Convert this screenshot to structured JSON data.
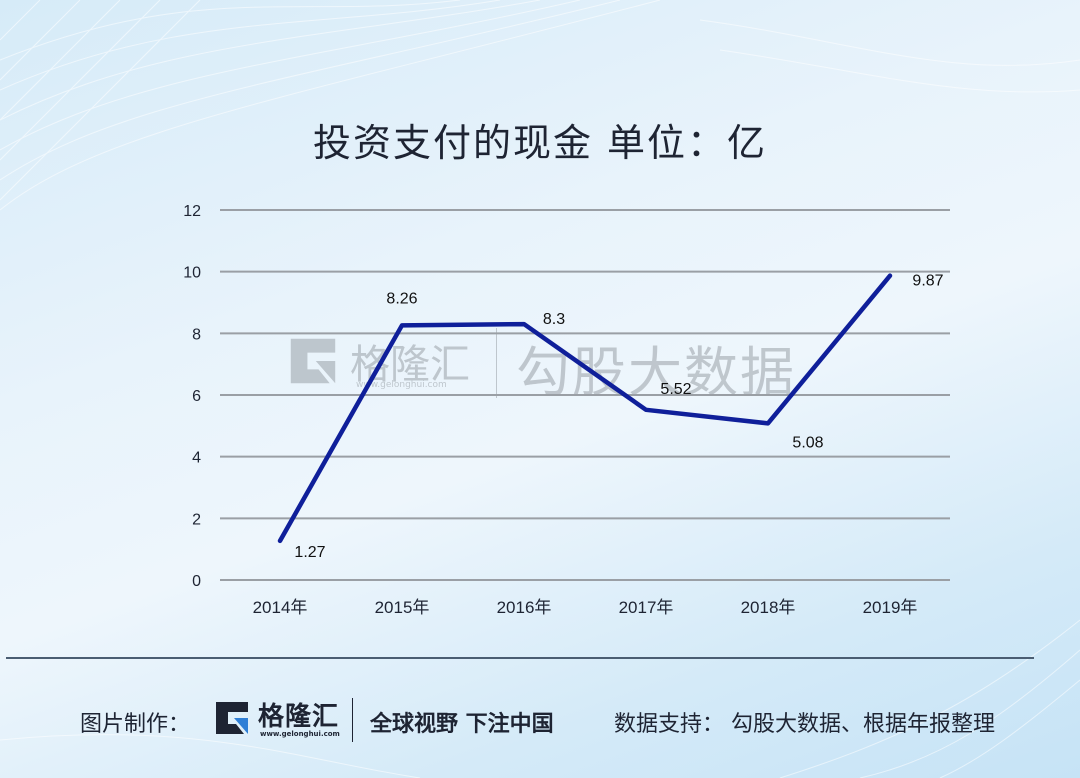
{
  "title": "投资支付的现金 单位：亿",
  "watermark": {
    "logo_name": "格隆汇",
    "logo_url": "www.gelonghui.com",
    "brand": "勾股大数据"
  },
  "footer": {
    "maker_label": "图片制作：",
    "logo_name": "格隆汇",
    "logo_url": "www.gelonghui.com",
    "slogan": "全球视野 下注中国",
    "source": "数据支持： 勾股大数据、根据年报整理"
  },
  "colors": {
    "line": "#0f1f9a",
    "grid": "#9a9fa5",
    "text": "#1e2433",
    "logo_accent": "#2f7fd6"
  },
  "chart_data": {
    "type": "line",
    "title": "投资支付的现金 单位：亿",
    "xlabel": "",
    "ylabel": "",
    "categories": [
      "2014年",
      "2015年",
      "2016年",
      "2017年",
      "2018年",
      "2019年"
    ],
    "series": [
      {
        "name": "投资支付的现金",
        "values": [
          1.27,
          8.26,
          8.3,
          5.52,
          5.08,
          9.87
        ]
      }
    ],
    "data_labels": [
      "1.27",
      "8.26",
      "8.3",
      "5.52",
      "5.08",
      "9.87"
    ],
    "yticks": [
      0,
      2,
      4,
      6,
      8,
      10,
      12
    ],
    "ylim": [
      0,
      12
    ],
    "grid": true,
    "legend": "none"
  }
}
